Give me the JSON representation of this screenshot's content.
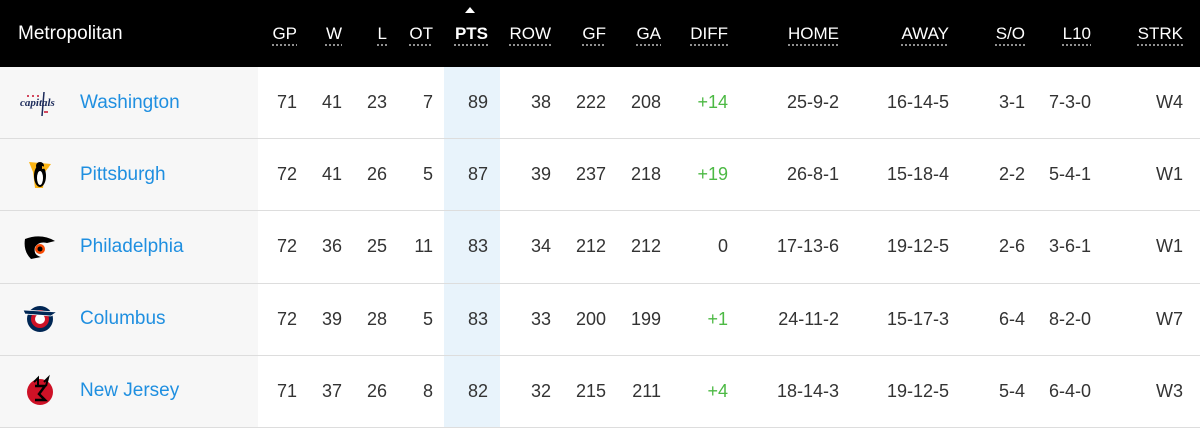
{
  "division": "Metropolitan",
  "columns": [
    "GP",
    "W",
    "L",
    "OT",
    "PTS",
    "ROW",
    "GF",
    "GA",
    "DIFF",
    "HOME",
    "AWAY",
    "S/O",
    "L10",
    "STRK"
  ],
  "sorted_column": "PTS",
  "colors": {
    "header_bg": "#000000",
    "team_link": "#1f8fe0",
    "positive_diff": "#4cb944",
    "sorted_column_bg": "#e8f3fb"
  },
  "rows": [
    {
      "team": "Washington",
      "logo": "capitals-logo",
      "stats": [
        "71",
        "41",
        "23",
        "7",
        "89",
        "38",
        "222",
        "208",
        "+14",
        "25-9-2",
        "16-14-5",
        "3-1",
        "7-3-0",
        "W4"
      ]
    },
    {
      "team": "Pittsburgh",
      "logo": "penguins-logo",
      "stats": [
        "72",
        "41",
        "26",
        "5",
        "87",
        "39",
        "237",
        "218",
        "+19",
        "26-8-1",
        "15-18-4",
        "2-2",
        "5-4-1",
        "W1"
      ]
    },
    {
      "team": "Philadelphia",
      "logo": "flyers-logo",
      "stats": [
        "72",
        "36",
        "25",
        "11",
        "83",
        "34",
        "212",
        "212",
        "0",
        "17-13-6",
        "19-12-5",
        "2-6",
        "3-6-1",
        "W1"
      ]
    },
    {
      "team": "Columbus",
      "logo": "blue-jackets-logo",
      "stats": [
        "72",
        "39",
        "28",
        "5",
        "83",
        "33",
        "200",
        "199",
        "+1",
        "24-11-2",
        "15-17-3",
        "6-4",
        "8-2-0",
        "W7"
      ]
    },
    {
      "team": "New Jersey",
      "logo": "devils-logo",
      "stats": [
        "71",
        "37",
        "26",
        "8",
        "82",
        "32",
        "215",
        "211",
        "+4",
        "18-14-3",
        "19-12-5",
        "5-4",
        "6-4-0",
        "W3"
      ]
    }
  ]
}
